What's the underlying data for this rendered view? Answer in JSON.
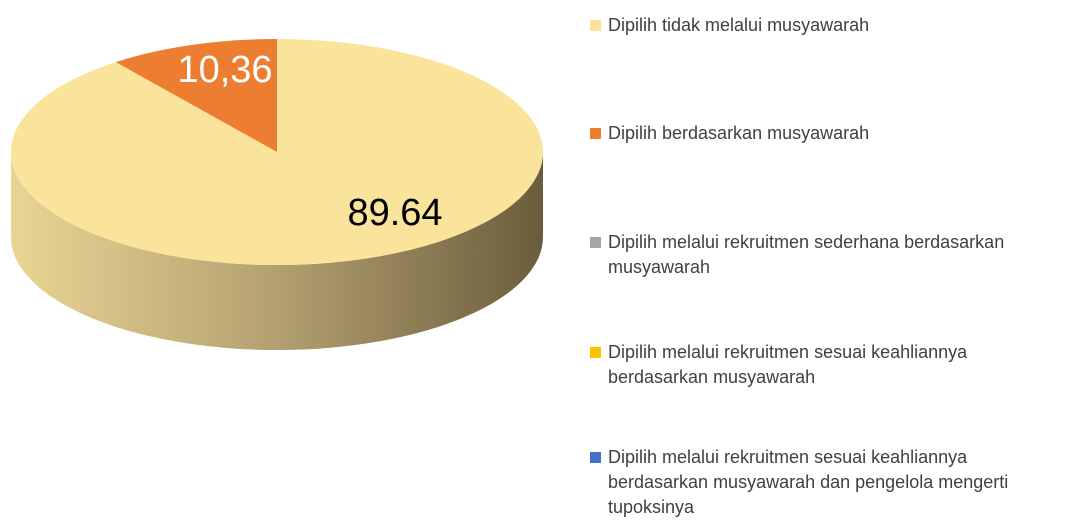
{
  "chart_data": {
    "type": "pie3d",
    "categories": [
      "Dipilih tidak melalui musyawarah",
      "Dipilih berdasarkan musyawarah",
      "Dipilih melalui rekruitmen sederhana berdasarkan musyawarah",
      "Dipilih melalui rekruitmen sesuai keahliannya berdasarkan musyawarah",
      "Dipilih melalui rekruitmen sesuai keahliannya berdasarkan musyawarah dan pengelola mengerti tupoksinya"
    ],
    "values": [
      89.64,
      10.36,
      0,
      0,
      0
    ],
    "value_labels": [
      "89.64",
      "10,36",
      null,
      null,
      null
    ],
    "colors": [
      "#fae49b",
      "#ed7d31",
      "#a5a5a5",
      "#ffc000",
      "#4472c4"
    ],
    "legend": "right"
  }
}
